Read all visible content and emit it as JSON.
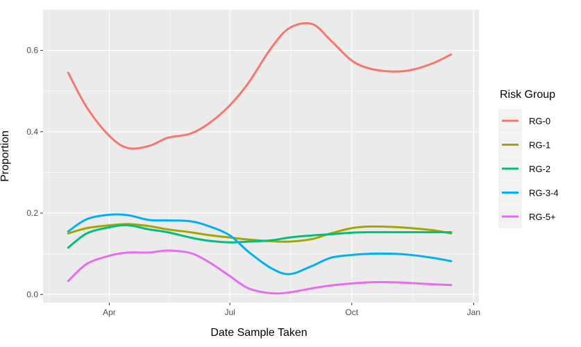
{
  "chart_data": {
    "type": "line",
    "title": "",
    "xlabel": "Date Sample Taken",
    "ylabel": "Proportion",
    "x_tick_labels": [
      "Apr",
      "Jul",
      "Oct",
      "Jan"
    ],
    "x_ticks": [
      "2021-04-01",
      "2021-07-01",
      "2021-10-01",
      "2022-01-01"
    ],
    "y_tick_labels": [
      "0.0",
      "0.2",
      "0.4",
      "0.6"
    ],
    "y_ticks": [
      0.0,
      0.2,
      0.4,
      0.6
    ],
    "xlim": [
      "2021-02-10",
      "2022-01-05"
    ],
    "ylim": [
      -0.02,
      0.7
    ],
    "grid": true,
    "legend": {
      "title": "Risk Group",
      "position": "right"
    },
    "x": [
      "2021-03-01",
      "2021-03-15",
      "2021-04-01",
      "2021-04-15",
      "2021-05-01",
      "2021-05-15",
      "2021-06-01",
      "2021-06-15",
      "2021-07-01",
      "2021-07-15",
      "2021-08-01",
      "2021-08-15",
      "2021-09-01",
      "2021-09-15",
      "2021-10-01",
      "2021-10-15",
      "2021-11-01",
      "2021-11-15",
      "2021-12-01",
      "2021-12-15"
    ],
    "series": [
      {
        "name": "RG-0",
        "color": "#F8766D",
        "values": [
          0.545,
          0.46,
          0.39,
          0.36,
          0.365,
          0.385,
          0.395,
          0.42,
          0.465,
          0.52,
          0.605,
          0.655,
          0.665,
          0.625,
          0.575,
          0.555,
          0.548,
          0.552,
          0.568,
          0.59
        ]
      },
      {
        "name": "RG-1",
        "color": "#A3A500",
        "values": [
          0.15,
          0.163,
          0.17,
          0.173,
          0.168,
          0.16,
          0.153,
          0.146,
          0.14,
          0.135,
          0.131,
          0.13,
          0.136,
          0.15,
          0.163,
          0.167,
          0.166,
          0.163,
          0.158,
          0.15
        ]
      },
      {
        "name": "RG-2",
        "color": "#00BF7D",
        "values": [
          0.115,
          0.15,
          0.165,
          0.17,
          0.16,
          0.153,
          0.14,
          0.132,
          0.128,
          0.13,
          0.133,
          0.14,
          0.145,
          0.148,
          0.152,
          0.153,
          0.153,
          0.153,
          0.153,
          0.153
        ]
      },
      {
        "name": "RG-3-4",
        "color": "#00B0F6",
        "values": [
          0.155,
          0.185,
          0.196,
          0.195,
          0.183,
          0.182,
          0.18,
          0.168,
          0.145,
          0.105,
          0.065,
          0.05,
          0.07,
          0.09,
          0.097,
          0.1,
          0.1,
          0.097,
          0.09,
          0.082
        ]
      },
      {
        "name": "RG-5+",
        "color": "#E76BF3",
        "values": [
          0.033,
          0.075,
          0.095,
          0.103,
          0.103,
          0.108,
          0.102,
          0.08,
          0.045,
          0.015,
          0.003,
          0.005,
          0.015,
          0.022,
          0.027,
          0.03,
          0.03,
          0.028,
          0.025,
          0.023
        ]
      }
    ]
  }
}
